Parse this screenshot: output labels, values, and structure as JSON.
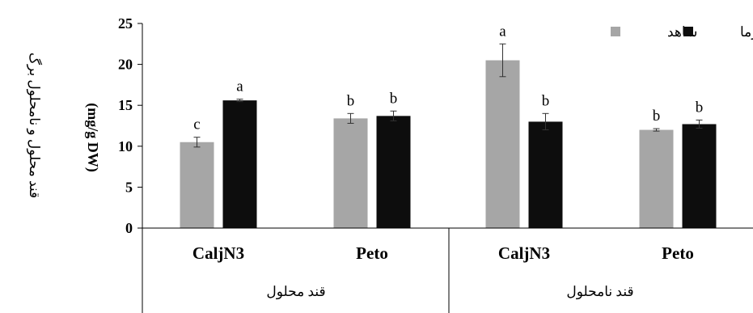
{
  "chart_data": {
    "type": "bar",
    "ylabel": "(mg/g DW)",
    "side_title": "قند محلول و نامحلول برگ",
    "ylim": [
      0,
      25
    ],
    "yticks": [
      0,
      5,
      10,
      15,
      20,
      25
    ],
    "grid": false,
    "legend_position": "top-right",
    "categories": [
      "CaljN3",
      "Peto",
      "CaljN3",
      "Peto"
    ],
    "groups": [
      {
        "label": "قند محلول",
        "categories": [
          0,
          1
        ]
      },
      {
        "label": "قند نامحلول",
        "categories": [
          2,
          3
        ]
      }
    ],
    "series": [
      {
        "name": "شاهد",
        "color": "#a6a6a6",
        "values": [
          10.5,
          13.4,
          20.5,
          12.0
        ],
        "errors": [
          0.6,
          0.6,
          2.0,
          0.15
        ],
        "labels": [
          "c",
          "b",
          "a",
          "b"
        ]
      },
      {
        "name": "سرما",
        "color": "#0d0d0d",
        "values": [
          15.6,
          13.7,
          13.0,
          12.7
        ],
        "errors": [
          0.15,
          0.6,
          1.0,
          0.5
        ],
        "labels": [
          "a",
          "b",
          "b",
          "b"
        ]
      }
    ]
  }
}
